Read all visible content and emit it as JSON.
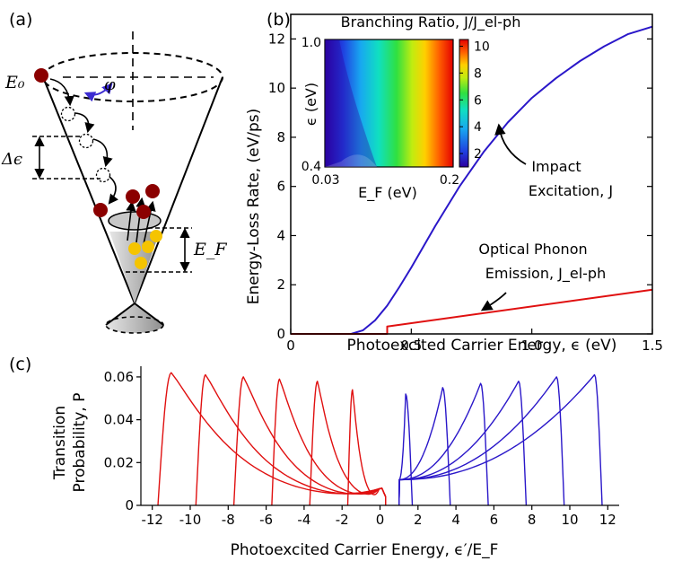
{
  "panel_labels": {
    "a": "(a)",
    "b": "(b)",
    "c": "(c)"
  },
  "diagram_a": {
    "e0_label": "E₀",
    "phi_label": "φ",
    "delta_eps_label": "Δϵ",
    "ef_label": "E_F",
    "colors": {
      "electron": "#8b0000",
      "hole": "#f5c400",
      "arrow": "#3b2bd1"
    }
  },
  "chart_data": [
    {
      "id": "b",
      "type": "line",
      "xlabel": "Photoexcited Carrier Energy, ϵ (eV)",
      "ylabel": "Energy-Loss Rate, (eV/ps)",
      "xlim": [
        0,
        1.5
      ],
      "ylim": [
        0,
        13
      ],
      "xticks": [
        0,
        0.5,
        1.0,
        1.5
      ],
      "xtick_labels": [
        "0",
        "0.5",
        "1.0",
        "1.5"
      ],
      "yticks": [
        0,
        2,
        4,
        6,
        8,
        10,
        12
      ],
      "ytick_labels": [
        "0",
        "2",
        "4",
        "6",
        "8",
        "10",
        "12"
      ],
      "series": [
        {
          "name": "Impact Excitation, J",
          "color": "#2a17c9",
          "x": [
            0,
            0.25,
            0.3,
            0.35,
            0.4,
            0.45,
            0.5,
            0.55,
            0.6,
            0.7,
            0.8,
            0.9,
            1.0,
            1.1,
            1.2,
            1.3,
            1.4,
            1.5
          ],
          "y": [
            0,
            0,
            0.15,
            0.55,
            1.15,
            1.9,
            2.7,
            3.55,
            4.4,
            6.0,
            7.4,
            8.6,
            9.6,
            10.4,
            11.1,
            11.7,
            12.2,
            12.5
          ]
        },
        {
          "name": "Optical Phonon Emission, J_el-ph",
          "color": "#e01010",
          "x": [
            0,
            0.4,
            0.4,
            1.5
          ],
          "y": [
            0,
            0,
            0.3,
            1.8
          ]
        }
      ],
      "annotations": [
        {
          "lines": [
            "Impact",
            "Excitation, J"
          ]
        },
        {
          "lines": [
            "Optical Phonon",
            "Emission, J_el-ph"
          ]
        }
      ],
      "inset": {
        "type": "heatmap",
        "title": "Branching Ratio, J/J_el-ph",
        "xlabel": "E_F (eV)",
        "ylabel": "ϵ (eV)",
        "x_range": [
          0.03,
          0.2
        ],
        "y_range": [
          0.4,
          1.0
        ],
        "x_tick_labels": [
          "0.03",
          "0.2"
        ],
        "y_tick_labels": [
          "0.4",
          "1.0"
        ],
        "colorbar_range": [
          1,
          10.5
        ],
        "colorbar_ticks": [
          2,
          4,
          6,
          8,
          10
        ],
        "colorbar_tick_labels": [
          "2",
          "4",
          "6",
          "8",
          "10"
        ]
      }
    },
    {
      "id": "c",
      "type": "line",
      "xlabel": "Photoexcited Carrier Energy, ϵ′/E_F",
      "ylabel": "Transition Probability, P",
      "ylabel_lines": [
        "Transition",
        "Probability, P"
      ],
      "xlim": [
        -12.6,
        12.6
      ],
      "ylim": [
        0,
        0.065
      ],
      "xticks": [
        -12,
        -10,
        -8,
        -6,
        -4,
        -2,
        0,
        2,
        4,
        6,
        8,
        10,
        12
      ],
      "xtick_labels": [
        "-12",
        "-10",
        "-8",
        "-6",
        "-4",
        "-2",
        "0",
        "2",
        "4",
        "6",
        "8",
        "10",
        "12"
      ],
      "yticks": [
        0,
        0.02,
        0.04,
        0.06
      ],
      "ytick_labels": [
        "0",
        "0.02",
        "0.04",
        "0.06"
      ],
      "red_curves": [
        {
          "start": -11.7,
          "end": 0.3,
          "peak_x": -11.0,
          "peak": 0.062
        },
        {
          "start": -9.7,
          "end": 0.3,
          "peak_x": -9.2,
          "peak": 0.061
        },
        {
          "start": -7.7,
          "end": 0.3,
          "peak_x": -7.2,
          "peak": 0.06
        },
        {
          "start": -5.7,
          "end": 0.3,
          "peak_x": -5.3,
          "peak": 0.059
        },
        {
          "start": -3.7,
          "end": 0.3,
          "peak_x": -3.3,
          "peak": 0.058
        },
        {
          "start": -1.7,
          "end": 0.3,
          "peak_x": -1.45,
          "peak": 0.054
        }
      ],
      "blue_curves": [
        {
          "start": 1.0,
          "end": 1.7,
          "peak_x": 1.35,
          "peak": 0.052
        },
        {
          "start": 1.0,
          "end": 3.7,
          "peak_x": 3.3,
          "peak": 0.055
        },
        {
          "start": 1.0,
          "end": 5.7,
          "peak_x": 5.3,
          "peak": 0.057
        },
        {
          "start": 1.0,
          "end": 7.7,
          "peak_x": 7.3,
          "peak": 0.058
        },
        {
          "start": 1.0,
          "end": 9.7,
          "peak_x": 9.3,
          "peak": 0.06
        },
        {
          "start": 1.0,
          "end": 11.7,
          "peak_x": 11.3,
          "peak": 0.061
        }
      ],
      "colors": {
        "red": "#e01010",
        "blue": "#2a17c9"
      }
    }
  ]
}
